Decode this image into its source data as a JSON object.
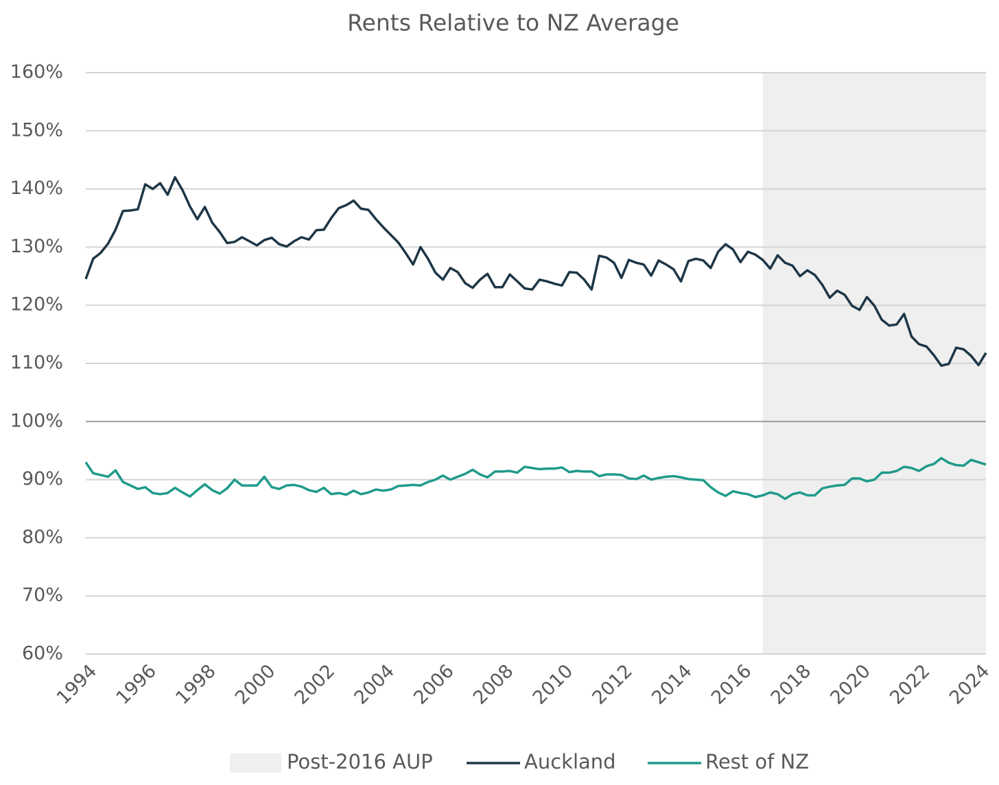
{
  "chart_data": {
    "type": "line",
    "title": "Rents Relative to NZ Average",
    "x": [
      1994,
      1994.25,
      1994.5,
      1994.75,
      1995,
      1995.25,
      1995.5,
      1995.75,
      1996,
      1996.25,
      1996.5,
      1996.75,
      1997,
      1997.25,
      1997.5,
      1997.75,
      1998,
      1998.25,
      1998.5,
      1998.75,
      1999,
      1999.25,
      1999.5,
      1999.75,
      2000,
      2000.25,
      2000.5,
      2000.75,
      2001,
      2001.25,
      2001.5,
      2001.75,
      2002,
      2002.25,
      2002.5,
      2002.75,
      2003,
      2003.25,
      2003.5,
      2003.75,
      2004,
      2004.25,
      2004.5,
      2004.75,
      2005,
      2005.25,
      2005.5,
      2005.75,
      2006,
      2006.25,
      2006.5,
      2006.75,
      2007,
      2007.25,
      2007.5,
      2007.75,
      2008,
      2008.25,
      2008.5,
      2008.75,
      2009,
      2009.25,
      2009.5,
      2009.75,
      2010,
      2010.25,
      2010.5,
      2010.75,
      2011,
      2011.25,
      2011.5,
      2011.75,
      2012,
      2012.25,
      2012.5,
      2012.75,
      2013,
      2013.25,
      2013.5,
      2013.75,
      2014,
      2014.25,
      2014.5,
      2014.75,
      2015,
      2015.25,
      2015.5,
      2015.75,
      2016,
      2016.25,
      2016.5,
      2016.75,
      2017,
      2017.25,
      2017.5,
      2017.75,
      2018,
      2018.25,
      2018.5,
      2018.75,
      2019,
      2019.25,
      2019.5,
      2019.75,
      2020,
      2020.25,
      2020.5,
      2020.75,
      2021,
      2021.25,
      2021.5,
      2021.75,
      2022,
      2022.25,
      2022.5,
      2022.75,
      2023,
      2023.25,
      2023.5,
      2023.75,
      2024,
      2024.25
    ],
    "series": [
      {
        "name": "Auckland",
        "color": "#1d3646",
        "values": [
          124.5,
          128,
          129,
          130.6,
          133,
          136.2,
          136.3,
          136.5,
          140.8,
          140,
          141,
          139,
          142,
          139.8,
          137,
          134.8,
          136.9,
          134.2,
          132.6,
          130.7,
          130.9,
          131.7,
          131,
          130.3,
          131.2,
          131.6,
          130.5,
          130.1,
          131,
          131.7,
          131.3,
          132.9,
          133,
          135,
          136.7,
          137.2,
          138,
          136.6,
          136.4,
          134.8,
          133.4,
          132.1,
          130.8,
          129,
          127,
          130,
          128,
          125.6,
          124.4,
          126.4,
          125.7,
          123.8,
          123,
          124.4,
          125.4,
          123.1,
          123.1,
          125.3,
          124.1,
          122.9,
          122.7,
          124.4,
          124.1,
          123.7,
          123.4,
          125.7,
          125.6,
          124.4,
          122.7,
          128.5,
          128.2,
          127.3,
          124.7,
          127.8,
          127.3,
          127,
          125.1,
          127.7,
          127,
          126.2,
          124.1,
          127.6,
          128,
          127.7,
          126.4,
          129.2,
          130.5,
          129.6,
          127.4,
          129.2,
          128.7,
          127.8,
          126.3,
          128.6,
          127.3,
          126.8,
          125,
          126,
          125.2,
          123.5,
          121.3,
          122.5,
          121.8,
          119.9,
          119.2,
          121.4,
          119.9,
          117.5,
          116.5,
          116.7,
          118.5,
          114.6,
          113.3,
          112.9,
          111.4,
          109.6,
          109.9,
          112.7,
          112.4,
          111.3,
          109.7,
          111.8
        ]
      },
      {
        "name": "Rest of NZ",
        "color": "#1f9a8a",
        "values": [
          93,
          91.1,
          90.8,
          90.5,
          91.6,
          89.6,
          89,
          88.4,
          88.7,
          87.7,
          87.5,
          87.7,
          88.6,
          87.8,
          87.1,
          88.2,
          89.2,
          88.2,
          87.6,
          88.5,
          90,
          89,
          89,
          89,
          90.5,
          88.7,
          88.4,
          89,
          89.1,
          88.8,
          88.2,
          87.9,
          88.6,
          87.5,
          87.7,
          87.4,
          88.1,
          87.5,
          87.8,
          88.3,
          88.1,
          88.3,
          88.9,
          89,
          89.1,
          89,
          89.6,
          90,
          90.7,
          90,
          90.5,
          91,
          91.7,
          90.9,
          90.4,
          91.4,
          91.4,
          91.5,
          91.2,
          92.2,
          92,
          91.8,
          91.9,
          91.9,
          92.1,
          91.3,
          91.5,
          91.4,
          91.4,
          90.6,
          90.9,
          90.9,
          90.8,
          90.2,
          90.1,
          90.7,
          90,
          90.3,
          90.5,
          90.6,
          90.4,
          90.1,
          90,
          89.9,
          88.7,
          87.8,
          87.2,
          88,
          87.7,
          87.5,
          87,
          87.3,
          87.8,
          87.5,
          86.7,
          87.5,
          87.8,
          87.3,
          87.3,
          88.5,
          88.8,
          89,
          89.1,
          90.2,
          90.2,
          89.7,
          90,
          91.2,
          91.2,
          91.5,
          92.2,
          92,
          91.5,
          92.3,
          92.7,
          93.7,
          92.9,
          92.5,
          92.4,
          93.4,
          93,
          92.6
        ]
      }
    ],
    "shaded_region": {
      "name": "Post-2016 AUP",
      "color": "#efefef",
      "x": [
        2016.75,
        2024.25
      ]
    },
    "xlim": [
      1994,
      2024.25
    ],
    "xticks": [
      1994,
      1996,
      1998,
      2000,
      2002,
      2004,
      2006,
      2008,
      2010,
      2012,
      2014,
      2016,
      2018,
      2020,
      2022,
      2024
    ],
    "ylim": [
      60,
      160
    ],
    "yticks": [
      {
        "value": 60,
        "label": "60%"
      },
      {
        "value": 70,
        "label": "70%"
      },
      {
        "value": 80,
        "label": "80%"
      },
      {
        "value": 90,
        "label": "90%"
      },
      {
        "value": 100,
        "label": "100%"
      },
      {
        "value": 110,
        "label": "110%"
      },
      {
        "value": 120,
        "label": "120%"
      },
      {
        "value": 130,
        "label": "130%"
      },
      {
        "value": 140,
        "label": "140%"
      },
      {
        "value": 150,
        "label": "150%"
      },
      {
        "value": 160,
        "label": "160%"
      }
    ],
    "baseline": 100,
    "grid": true,
    "legend": "bottom"
  }
}
